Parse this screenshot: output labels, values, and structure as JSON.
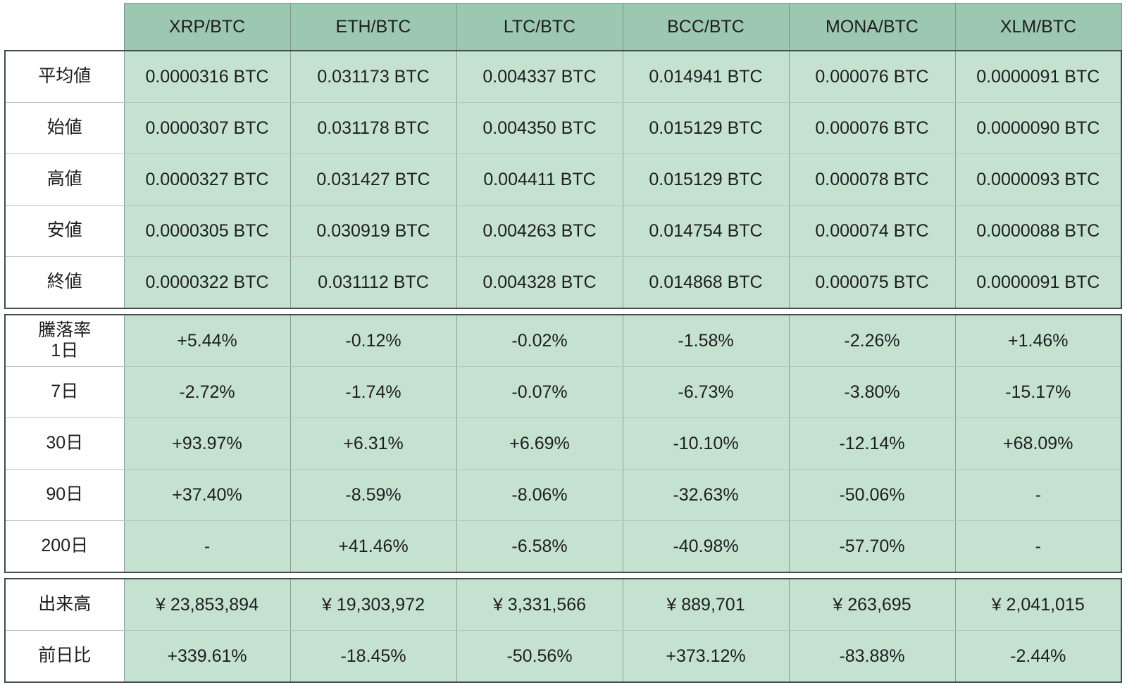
{
  "chart_data": {
    "type": "table",
    "columns": [
      "XRP/BTC",
      "ETH/BTC",
      "LTC/BTC",
      "BCC/BTC",
      "MONA/BTC",
      "XLM/BTC"
    ],
    "price_rows": [
      {
        "label": "平均値",
        "values": [
          "0.0000316 BTC",
          "0.031173 BTC",
          "0.004337 BTC",
          "0.014941 BTC",
          "0.000076 BTC",
          "0.0000091 BTC"
        ]
      },
      {
        "label": "始値",
        "values": [
          "0.0000307 BTC",
          "0.031178 BTC",
          "0.004350 BTC",
          "0.015129 BTC",
          "0.000076 BTC",
          "0.0000090 BTC"
        ]
      },
      {
        "label": "高値",
        "values": [
          "0.0000327 BTC",
          "0.031427 BTC",
          "0.004411 BTC",
          "0.015129 BTC",
          "0.000078 BTC",
          "0.0000093 BTC"
        ]
      },
      {
        "label": "安値",
        "values": [
          "0.0000305 BTC",
          "0.030919 BTC",
          "0.004263 BTC",
          "0.014754 BTC",
          "0.000074 BTC",
          "0.0000088 BTC"
        ]
      },
      {
        "label": "終値",
        "values": [
          "0.0000322 BTC",
          "0.031112 BTC",
          "0.004328 BTC",
          "0.014868 BTC",
          "0.000075 BTC",
          "0.0000091 BTC"
        ]
      }
    ],
    "change_rows": [
      {
        "label": "騰落率\n1日",
        "values": [
          "+5.44%",
          "-0.12%",
          "-0.02%",
          "-1.58%",
          "-2.26%",
          "+1.46%"
        ]
      },
      {
        "label": "7日",
        "values": [
          "-2.72%",
          "-1.74%",
          "-0.07%",
          "-6.73%",
          "-3.80%",
          "-15.17%"
        ]
      },
      {
        "label": "30日",
        "values": [
          "+93.97%",
          "+6.31%",
          "+6.69%",
          "-10.10%",
          "-12.14%",
          "+68.09%"
        ]
      },
      {
        "label": "90日",
        "values": [
          "+37.40%",
          "-8.59%",
          "-8.06%",
          "-32.63%",
          "-50.06%",
          "-"
        ]
      },
      {
        "label": "200日",
        "values": [
          "-",
          "+41.46%",
          "-6.58%",
          "-40.98%",
          "-57.70%",
          "-"
        ]
      }
    ],
    "volume_rows": [
      {
        "label": "出来高",
        "values": [
          "¥ 23,853,894",
          "¥ 19,303,972",
          "¥ 3,331,566",
          "¥ 889,701",
          "¥ 263,695",
          "¥ 2,041,015"
        ]
      },
      {
        "label": "前日比",
        "values": [
          "+339.61%",
          "-18.45%",
          "-50.56%",
          "+373.12%",
          "-83.88%",
          "-2.44%"
        ]
      }
    ],
    "layout_hints": {
      "sections": [
        "prices",
        "change_rates",
        "volume"
      ],
      "grid": "on",
      "header_position": "top"
    },
    "colors": {
      "header_bg": "#9cc8b1",
      "cell_bg": "#c5e2d1",
      "label_bg": "#ffffff",
      "text": "#1e1e1e",
      "border_dark": "#474e4a",
      "border_vertical": "#8c9c94",
      "border_horizontal": "#b9c4be"
    }
  }
}
